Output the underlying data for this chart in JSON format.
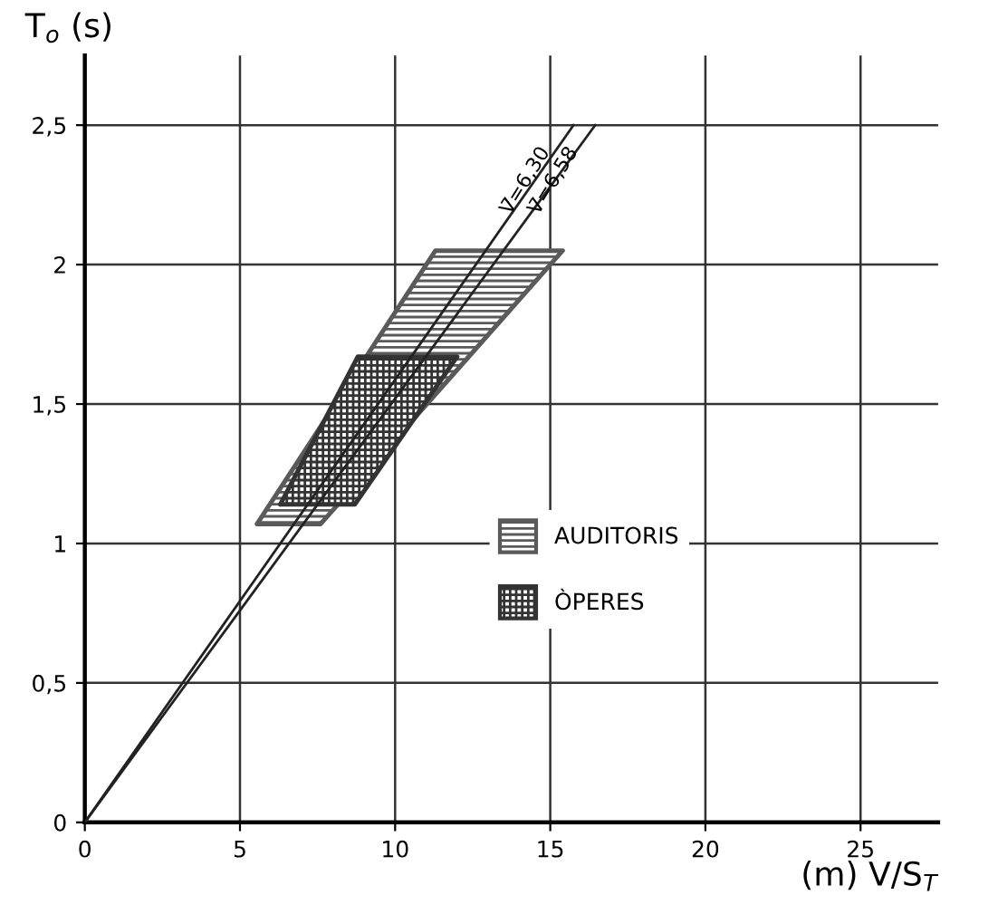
{
  "chart_data": {
    "type": "area",
    "xlabel": "(m) V/S$_{T}$",
    "ylabel": "T$_{o}$ (s)",
    "xlim": [
      0,
      27.5
    ],
    "ylim": [
      0,
      2.75
    ],
    "xticks": [
      0,
      5,
      10,
      15,
      20,
      25
    ],
    "yticks": [
      0,
      {
        "value": 0.5,
        "label": "0,5"
      },
      1,
      {
        "value": 1.5,
        "label": "1,5"
      },
      2,
      {
        "value": 2.5,
        "label": "2,5"
      }
    ],
    "grid": true,
    "legend": "right",
    "series": [
      {
        "name": "AUDITORIS",
        "color": "#5a5a5a",
        "x": [
          5.55,
          7.6,
          15.4,
          11.3
        ],
        "values": [
          1.07,
          1.07,
          2.05,
          2.05
        ]
      },
      {
        "name": "ÒPERES",
        "color": "#333333",
        "x": [
          6.3,
          8.7,
          12.0,
          8.8
        ],
        "values": [
          1.14,
          1.14,
          1.67,
          1.67
        ]
      },
      {
        "type": "line",
        "color": "#222222",
        "x": [
          0,
          15.75
        ],
        "values": [
          0,
          2.5
        ]
      },
      {
        "type": "line",
        "color": "#222222",
        "x": [
          0,
          16.45
        ],
        "values": [
          0,
          2.5
        ]
      }
    ],
    "annotations": [
      {
        "text": "V̄=6,30",
        "x": 14.2,
        "y": 2.3
      },
      {
        "text": "V̄=6,58",
        "x": 15.1,
        "y": 2.3
      }
    ]
  }
}
